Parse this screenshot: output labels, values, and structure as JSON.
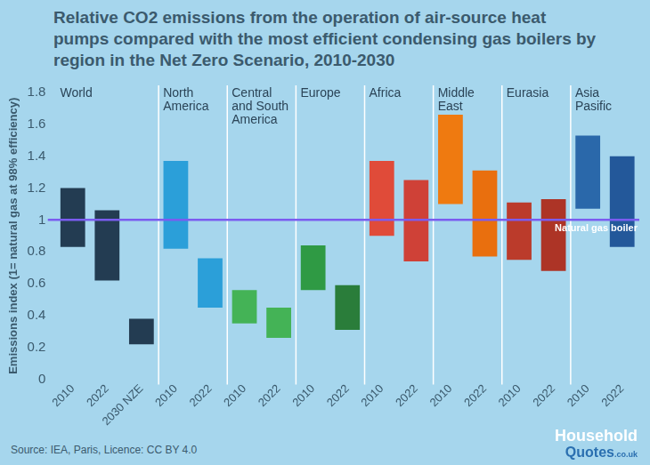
{
  "chart_data": {
    "type": "bar",
    "title": "Relative CO2 emissions from the operation of air-source heat pumps compared with the most efficient condensing gas boilers by region in the Net Zero Scenario, 2010-2030",
    "y_label": "Emissions index (1= natural gas at 98% efficiency)",
    "categories": [
      "2010",
      "2022",
      "2030 NZE",
      "2010",
      "2022",
      "2010",
      "2022",
      "2010",
      "2022",
      "2010",
      "2022",
      "2010",
      "2022",
      "2010",
      "2022",
      "2010",
      "2022"
    ],
    "group_labels": [
      "World",
      "World",
      "World",
      "North America",
      "North America",
      "Central and South America",
      "Central and South America",
      "Europe",
      "Europe",
      "Africa",
      "Africa",
      "Middle East",
      "Middle East",
      "Eurasia",
      "Eurasia",
      "Asia Pasific",
      "Asia Pasific"
    ],
    "values": [
      [
        0.83,
        1.2
      ],
      [
        0.62,
        1.06
      ],
      [
        0.22,
        0.38
      ],
      [
        0.82,
        1.37
      ],
      [
        0.45,
        0.76
      ],
      [
        0.35,
        0.56
      ],
      [
        0.26,
        0.45
      ],
      [
        0.56,
        0.84
      ],
      [
        0.31,
        0.59
      ],
      [
        0.9,
        1.37
      ],
      [
        0.74,
        1.25
      ],
      [
        1.1,
        1.66
      ],
      [
        0.77,
        1.31
      ],
      [
        0.75,
        1.11
      ],
      [
        0.68,
        1.13
      ],
      [
        1.07,
        1.53
      ],
      [
        0.83,
        1.4
      ]
    ],
    "colors": [
      "#233c52",
      "#233c52",
      "#233c52",
      "#2b9fd9",
      "#2b9fd9",
      "#44b356",
      "#44b356",
      "#2f9a44",
      "#2a7d3a",
      "#e04b39",
      "#cf4137",
      "#ef7a10",
      "#e96f0e",
      "#bb3b2b",
      "#ad3426",
      "#2a68aa",
      "#23589a"
    ],
    "ylim": [
      0,
      1.8
    ],
    "yticks": [
      0,
      0.2,
      0.4,
      0.6,
      0.8,
      1,
      1.2,
      1.4,
      1.6,
      1.8
    ],
    "grid": false,
    "reference_line": {
      "value": 1,
      "label": "Natural gas boiler",
      "color": "#7b5cf0"
    },
    "source": "Source: IEA, Paris, Licence: CC BY 4.0",
    "logo": [
      "Household",
      "Quotes",
      ".co.uk"
    ]
  }
}
